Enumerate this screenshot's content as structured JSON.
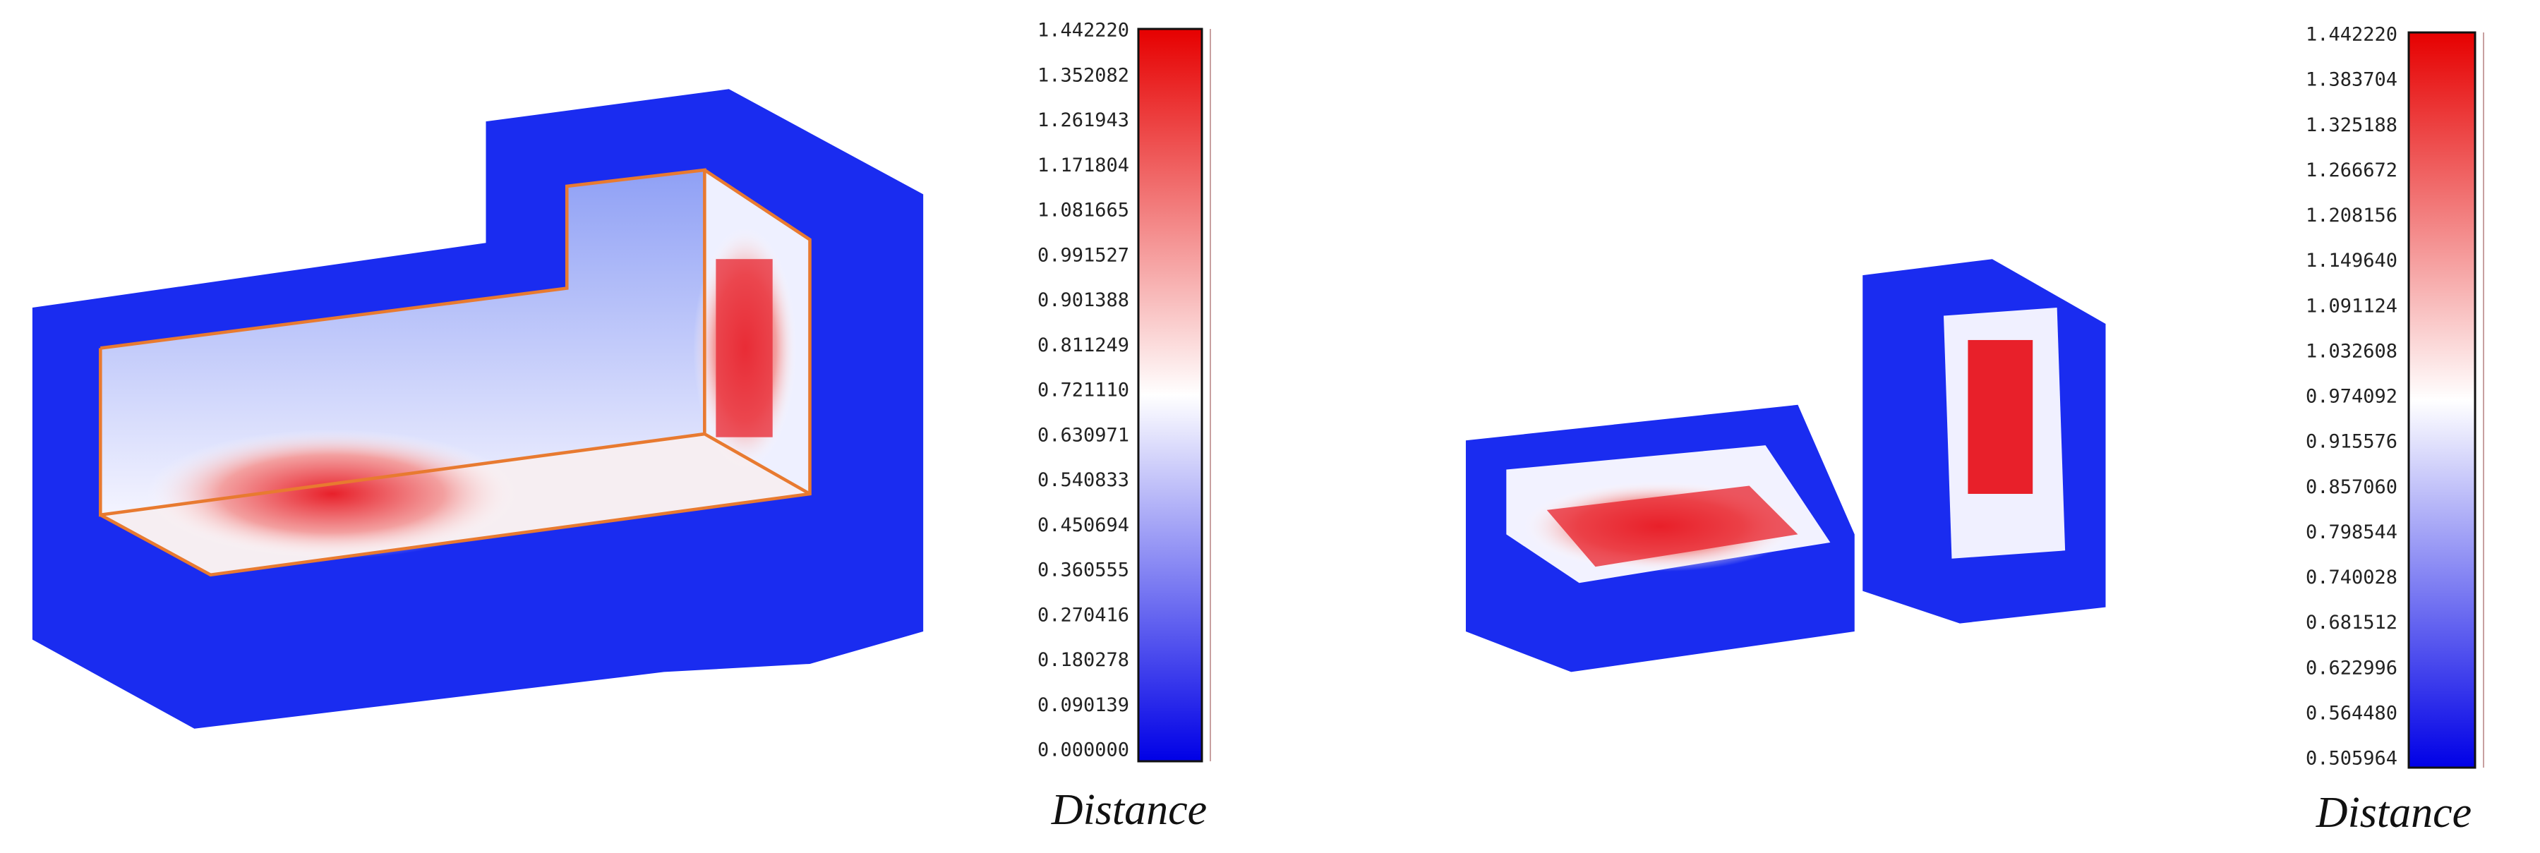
{
  "panels": [
    {
      "colorbar": {
        "ticks": [
          "1.442220",
          "1.352082",
          "1.261943",
          "1.171804",
          "1.081665",
          "0.991527",
          "0.901388",
          "0.811249",
          "0.721110",
          "0.630971",
          "0.540833",
          "0.450694",
          "0.360555",
          "0.270416",
          "0.180278",
          "0.090139",
          "0.000000"
        ]
      },
      "label": "Distance"
    },
    {
      "colorbar": {
        "ticks": [
          "1.442220",
          "1.383704",
          "1.325188",
          "1.266672",
          "1.208156",
          "1.149640",
          "1.091124",
          "1.032608",
          "0.974092",
          "0.915576",
          "0.857060",
          "0.798544",
          "0.740028",
          "0.681512",
          "0.622996",
          "0.564480",
          "0.505964"
        ]
      },
      "label": "Distance"
    }
  ]
}
